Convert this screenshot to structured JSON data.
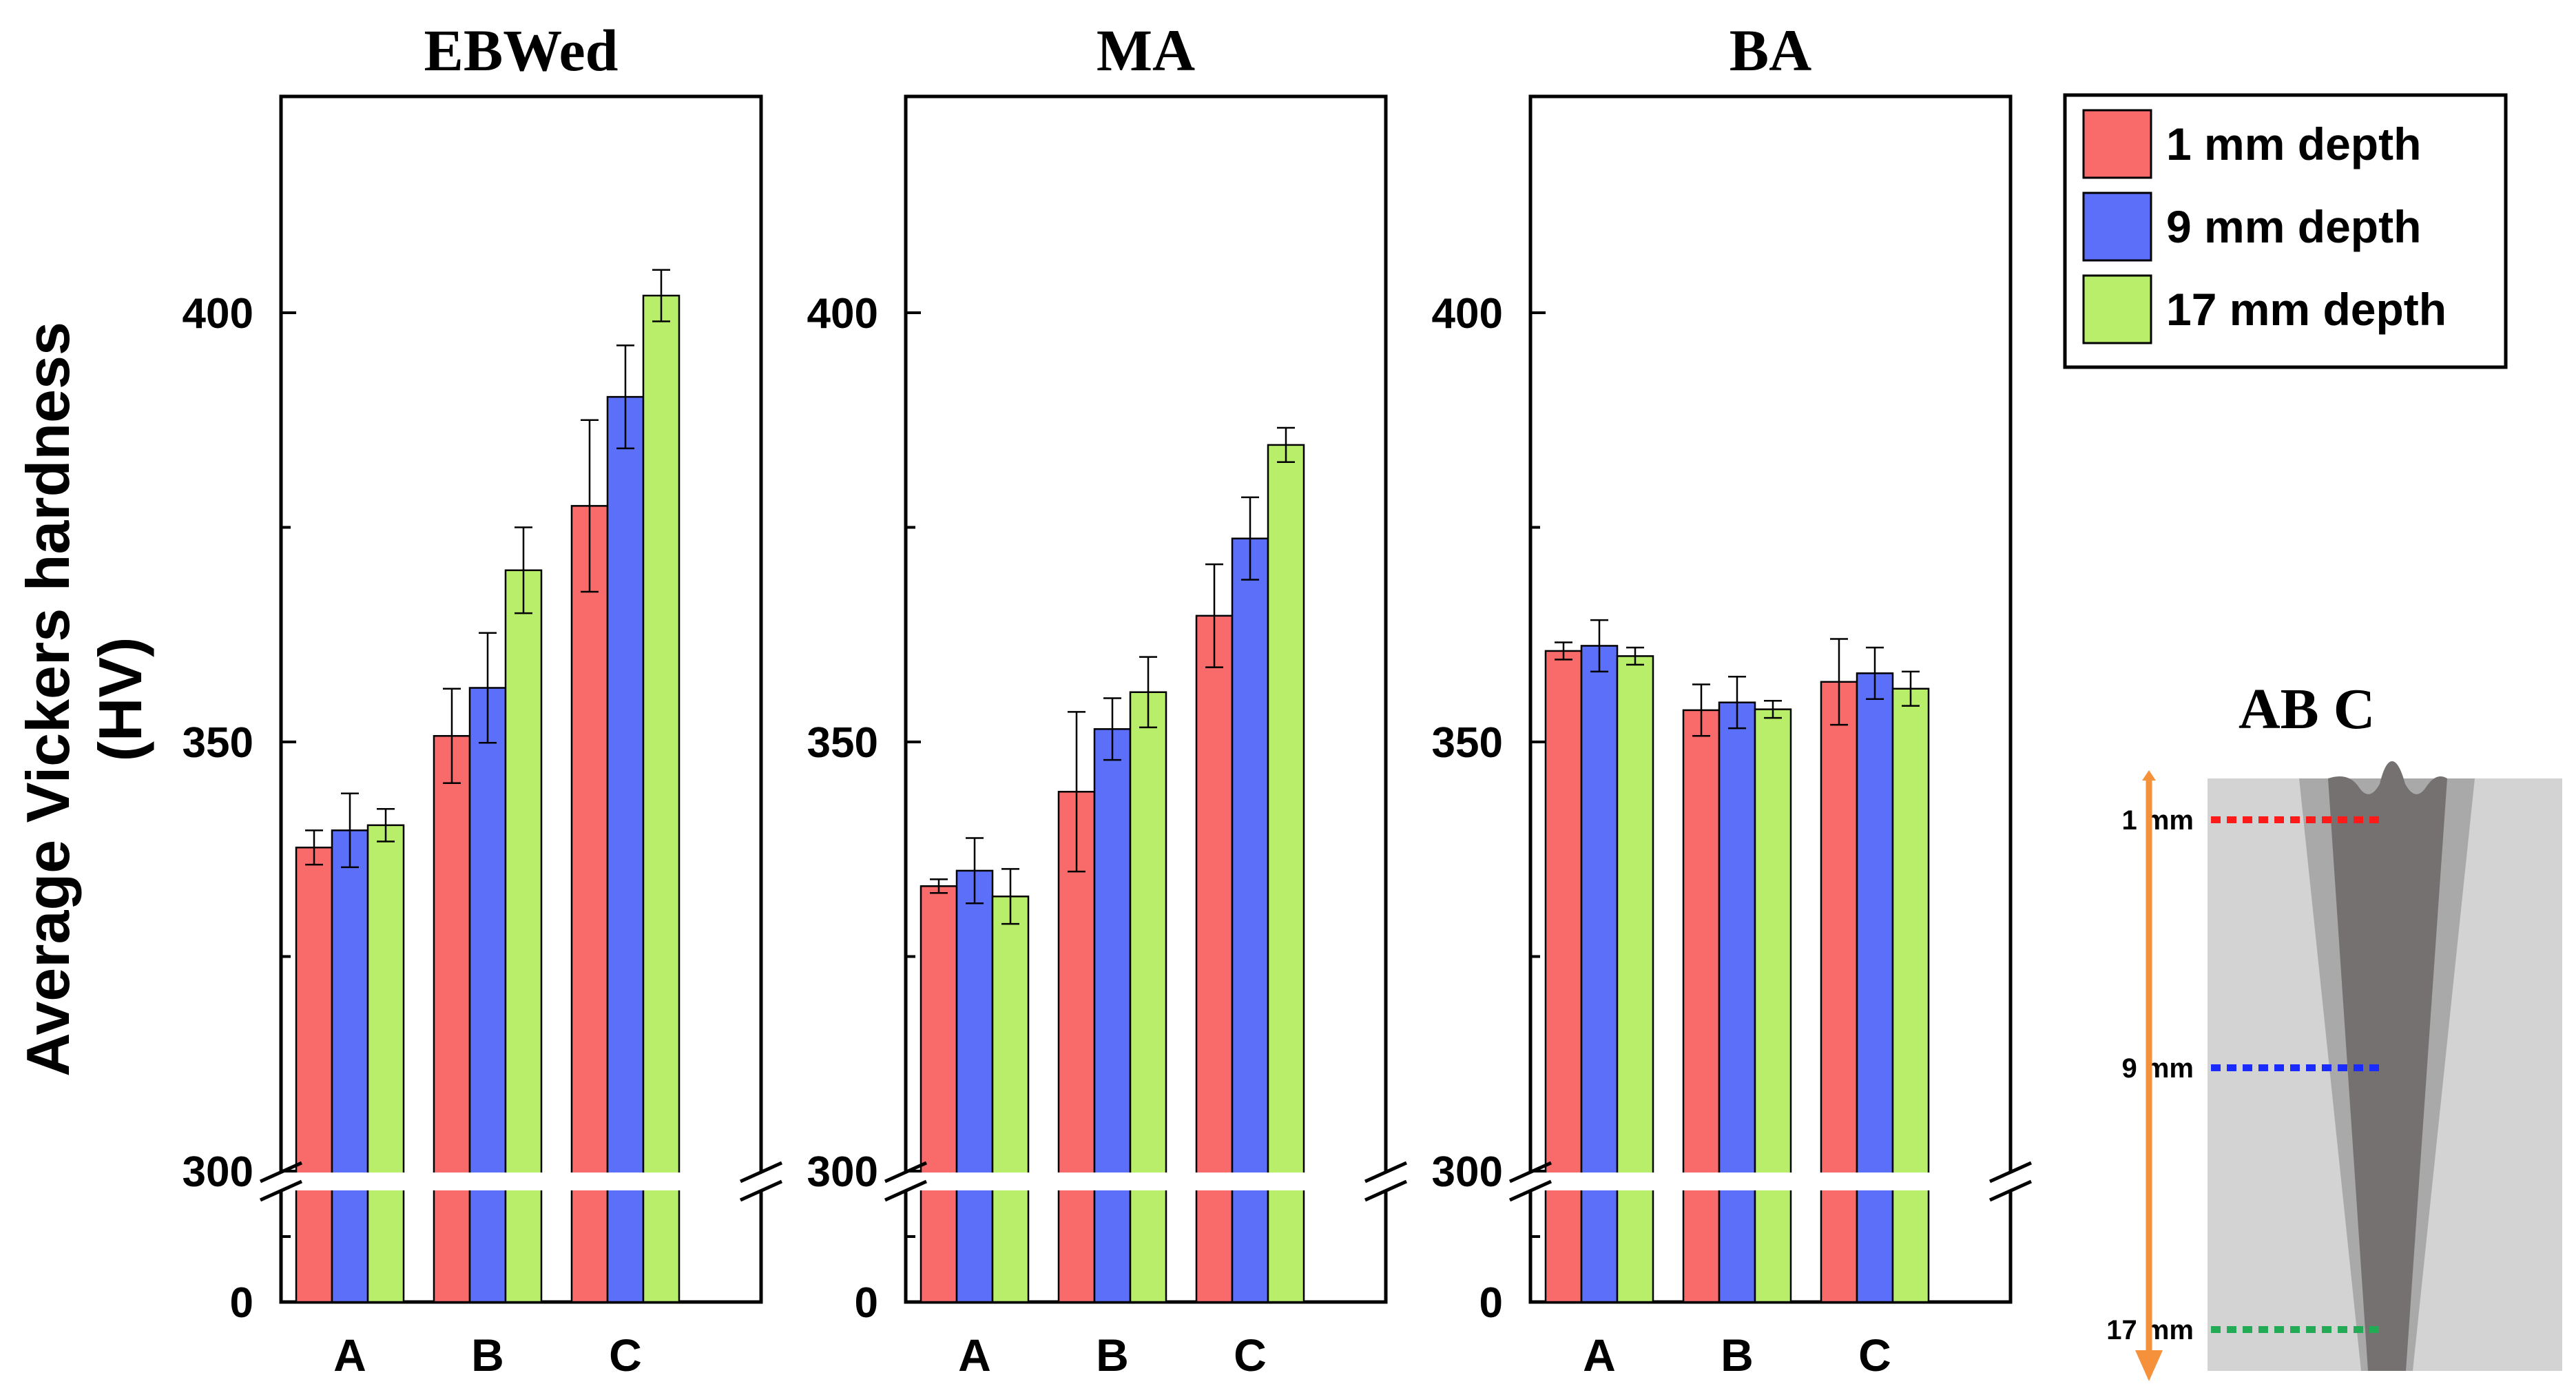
{
  "chart_data": {
    "type": "bar",
    "ylabel_line1": "Average Vickers hardness",
    "ylabel_line2": "(HV)",
    "y_axis": {
      "broken": true,
      "lower_segment": [
        0,
        300
      ],
      "upper_segment": [
        300,
        420
      ],
      "tick_labels": [
        "0",
        "300",
        "350",
        "400"
      ]
    },
    "categories": [
      "A",
      "B",
      "C"
    ],
    "panels": [
      {
        "title": "EBWed",
        "series": [
          {
            "name": "1 mm depth",
            "values": [
              337.7,
              350.7,
              377.5
            ],
            "errors": [
              2.0,
              5.5,
              10.0
            ]
          },
          {
            "name": "9 mm depth",
            "values": [
              339.7,
              356.3,
              390.2
            ],
            "errors": [
              4.3,
              6.4,
              6.0
            ]
          },
          {
            "name": "17 mm depth",
            "values": [
              340.3,
              370.0,
              402.0
            ],
            "errors": [
              1.9,
              5.0,
              3.0
            ]
          }
        ]
      },
      {
        "title": "MA",
        "series": [
          {
            "name": "1 mm depth",
            "values": [
              333.2,
              344.2,
              364.7
            ],
            "errors": [
              0.8,
              9.3,
              6.0
            ]
          },
          {
            "name": "9 mm depth",
            "values": [
              335.0,
              351.5,
              373.7
            ],
            "errors": [
              3.8,
              3.6,
              4.8
            ]
          },
          {
            "name": "17 mm depth",
            "values": [
              332.0,
              355.8,
              384.6
            ],
            "errors": [
              3.2,
              4.1,
              2.0
            ]
          }
        ]
      },
      {
        "title": "BA",
        "series": [
          {
            "name": "1 mm depth",
            "values": [
              360.6,
              353.7,
              357.0
            ],
            "errors": [
              1.0,
              3.0,
              5.0
            ]
          },
          {
            "name": "9 mm depth",
            "values": [
              361.2,
              354.6,
              358.0
            ],
            "errors": [
              3.0,
              3.0,
              3.0
            ]
          },
          {
            "name": "17 mm depth",
            "values": [
              360.0,
              353.8,
              356.2
            ],
            "errors": [
              1.0,
              1.0,
              2.0
            ]
          }
        ]
      }
    ],
    "legend": [
      {
        "label": "1 mm depth",
        "color": "#f96b6b"
      },
      {
        "label": "9 mm depth",
        "color": "#5b6ff8"
      },
      {
        "label": "17 mm depth",
        "color": "#b9ee6a"
      }
    ]
  },
  "schematic": {
    "zone_labels": "AB  C",
    "depth_markers": [
      {
        "label": "1 mm",
        "color": "#ff1a1a"
      },
      {
        "label": "9 mm",
        "color": "#1a2bff"
      },
      {
        "label": "17 mm",
        "color": "#22aa55"
      }
    ],
    "arrow_color": "#f5913b"
  }
}
